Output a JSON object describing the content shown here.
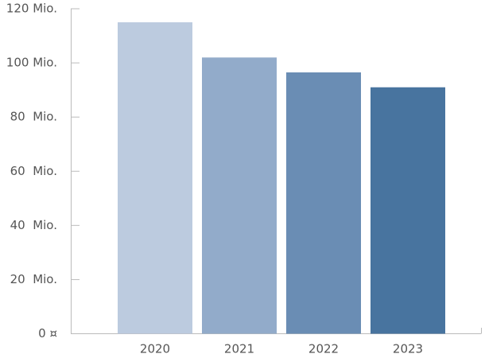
{
  "chart_data": {
    "type": "bar",
    "categories": [
      "2020",
      "2021",
      "2022",
      "2023"
    ],
    "values": [
      115,
      102,
      96.5,
      91
    ],
    "colors": [
      "#bccbdf",
      "#92abca",
      "#6a8db4",
      "#48749f"
    ],
    "ylim": [
      0,
      120
    ],
    "yticks": [
      {
        "value": 0,
        "label": "0 ¤"
      },
      {
        "value": 20,
        "label": "20  Mio."
      },
      {
        "value": 40,
        "label": "40  Mio."
      },
      {
        "value": 60,
        "label": "60  Mio."
      },
      {
        "value": 80,
        "label": "80  Mio."
      },
      {
        "value": 100,
        "label": "100 Mio."
      },
      {
        "value": 120,
        "label": "120 Mio."
      }
    ],
    "grid": false
  }
}
